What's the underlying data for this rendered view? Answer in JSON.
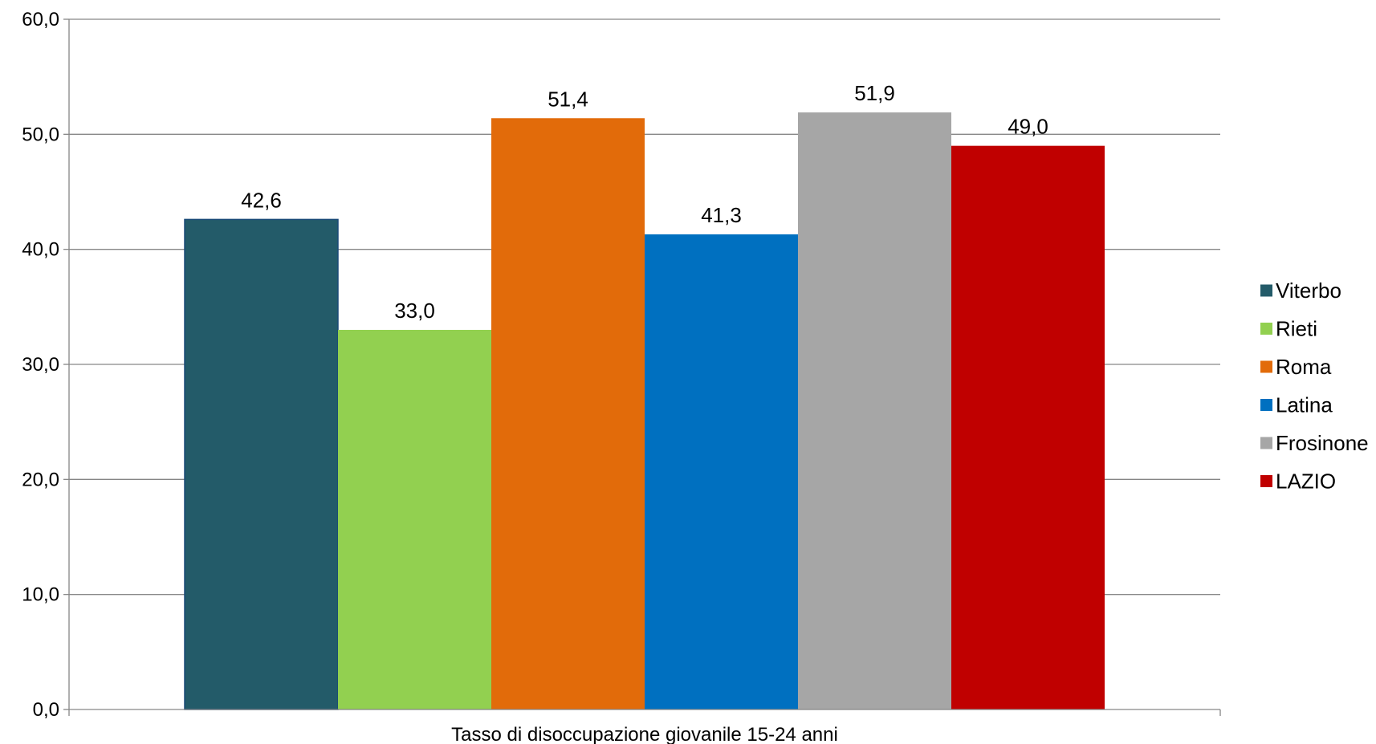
{
  "chart_data": {
    "type": "bar",
    "categories": [
      "Tasso di disoccupazione giovanile 15-24 anni"
    ],
    "series": [
      {
        "name": "Viterbo",
        "values": [
          42.6
        ],
        "label": "42,6",
        "color": "#235B69"
      },
      {
        "name": "Rieti",
        "values": [
          33.0
        ],
        "label": "33,0",
        "color": "#92D050"
      },
      {
        "name": "Roma",
        "values": [
          51.4
        ],
        "label": "51,4",
        "color": "#E26B0A"
      },
      {
        "name": "Latina",
        "values": [
          41.3
        ],
        "label": "41,3",
        "color": "#0070C0"
      },
      {
        "name": "Frosinone",
        "values": [
          51.9
        ],
        "label": "51,9",
        "color": "#A6A6A6"
      },
      {
        "name": "LAZIO",
        "values": [
          49.0
        ],
        "label": "49,0",
        "color": "#C00000"
      }
    ],
    "ylim": [
      0,
      60
    ],
    "yticks": [
      {
        "value": 0,
        "label": "0,0"
      },
      {
        "value": 10,
        "label": "10,0"
      },
      {
        "value": 20,
        "label": "20,0"
      },
      {
        "value": 30,
        "label": "30,0"
      },
      {
        "value": 40,
        "label": "40,0"
      },
      {
        "value": 50,
        "label": "50,0"
      },
      {
        "value": 60,
        "label": "60,0"
      }
    ],
    "grid": true,
    "legend_position": "right",
    "gridline_color": "#868686"
  }
}
